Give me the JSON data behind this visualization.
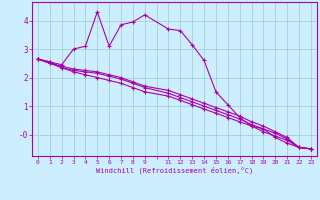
{
  "xlabel": "Windchill (Refroidissement éolien,°C)",
  "bg_color": "#cceeff",
  "line_color": "#aa00aa",
  "grid_color": "#99cccc",
  "x_ticks": [
    0,
    1,
    2,
    3,
    4,
    5,
    6,
    7,
    8,
    9,
    11,
    12,
    13,
    14,
    15,
    16,
    17,
    18,
    19,
    20,
    21,
    22,
    23
  ],
  "y_ticks": [
    0,
    1,
    2,
    3,
    4
  ],
  "ylim": [
    -0.75,
    4.65
  ],
  "xlim": [
    -0.5,
    23.5
  ],
  "line1_x": [
    0,
    1,
    2,
    3,
    4,
    5,
    6,
    7,
    8,
    9,
    11,
    12,
    13,
    14,
    15,
    16,
    17,
    18,
    19,
    20,
    21,
    22,
    23
  ],
  "line1_y": [
    2.65,
    2.55,
    2.45,
    3.0,
    3.1,
    4.3,
    3.1,
    3.85,
    3.95,
    4.2,
    3.7,
    3.65,
    3.15,
    2.6,
    1.5,
    1.05,
    0.6,
    0.3,
    0.2,
    -0.1,
    -0.3,
    -0.45,
    -0.5
  ],
  "line2_x": [
    0,
    1,
    2,
    3,
    4,
    5,
    6,
    7,
    8,
    9,
    11,
    12,
    13,
    14,
    15,
    16,
    17,
    18,
    19,
    20,
    21,
    22,
    23
  ],
  "line2_y": [
    2.65,
    2.55,
    2.35,
    2.25,
    2.2,
    2.15,
    2.05,
    1.95,
    1.8,
    1.65,
    1.45,
    1.3,
    1.15,
    1.0,
    0.85,
    0.7,
    0.55,
    0.35,
    0.2,
    0.05,
    -0.15,
    -0.45,
    -0.5
  ],
  "line3_x": [
    0,
    1,
    2,
    3,
    4,
    5,
    6,
    7,
    8,
    9,
    11,
    12,
    13,
    14,
    15,
    16,
    17,
    18,
    19,
    20,
    21,
    22,
    23
  ],
  "line3_y": [
    2.65,
    2.5,
    2.35,
    2.2,
    2.1,
    2.0,
    1.9,
    1.8,
    1.65,
    1.5,
    1.35,
    1.2,
    1.05,
    0.9,
    0.75,
    0.6,
    0.45,
    0.3,
    0.1,
    -0.05,
    -0.2,
    -0.45,
    -0.5
  ],
  "line4_x": [
    0,
    1,
    2,
    3,
    4,
    5,
    6,
    7,
    8,
    9,
    11,
    12,
    13,
    14,
    15,
    16,
    17,
    18,
    19,
    20,
    21,
    22,
    23
  ],
  "line4_y": [
    2.65,
    2.5,
    2.4,
    2.3,
    2.25,
    2.2,
    2.1,
    2.0,
    1.85,
    1.7,
    1.55,
    1.4,
    1.25,
    1.1,
    0.95,
    0.8,
    0.65,
    0.45,
    0.3,
    0.1,
    -0.1,
    -0.45,
    -0.5
  ]
}
